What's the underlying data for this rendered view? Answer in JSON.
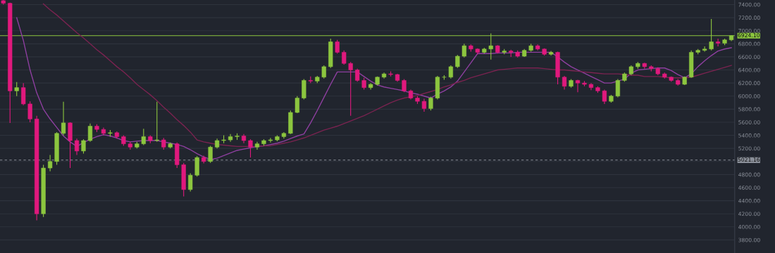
{
  "chart_data": {
    "type": "candlestick",
    "categories": [
      null,
      null,
      null,
      null,
      null,
      null,
      null,
      null,
      null,
      null,
      null,
      null,
      null,
      null,
      null,
      null,
      null,
      null,
      null,
      null,
      null,
      null,
      null,
      null,
      null,
      null,
      null,
      null,
      null,
      null,
      null,
      null,
      null,
      null,
      null,
      null,
      null,
      null,
      null,
      null,
      null,
      null,
      null,
      null,
      null,
      null,
      null,
      null,
      null,
      null,
      null,
      null,
      null,
      null,
      null,
      null,
      null,
      null,
      null,
      null,
      null,
      null,
      null,
      null,
      null,
      null,
      null,
      null,
      null,
      null,
      null,
      null,
      null,
      null,
      null,
      null,
      null,
      null,
      null,
      null,
      null,
      null,
      null,
      null,
      null,
      null,
      null,
      null,
      null,
      null,
      null,
      null,
      null,
      null,
      null,
      null,
      null,
      null,
      null,
      null,
      null,
      null,
      null,
      null,
      null,
      null,
      null,
      null,
      null,
      null
    ],
    "colors": [
      "#e0197d",
      "#e0197d",
      "#8cc63f",
      "#e0197d",
      "#e0197d",
      "#e0197d",
      "#8cc63f",
      "#8cc63f",
      "#8cc63f",
      "#8cc63f",
      "#e0197d",
      "#e0197d",
      "#8cc63f",
      "#8cc63f",
      "#e0197d",
      "#e0197d",
      "#8cc63f",
      "#e0197d",
      "#e0197d",
      "#e0197d",
      "#8cc63f",
      "#8cc63f",
      "#e0197d",
      "#8cc63f",
      "#e0197d",
      "#8cc63f",
      "#e0197d",
      "#e0197d",
      "#8cc63f",
      "#8cc63f",
      "#e0197d",
      "#8cc63f",
      "#8cc63f",
      "#8cc63f",
      "#8cc63f",
      "#8cc63f",
      "#e0197d",
      "#e0197d",
      "#8cc63f",
      "#8cc63f",
      "#8cc63f",
      "#8cc63f",
      "#8cc63f",
      "#8cc63f",
      "#8cc63f",
      "#8cc63f",
      "#e0197d",
      "#8cc63f",
      "#8cc63f",
      "#8cc63f",
      "#e0197d",
      "#e0197d",
      "#e0197d",
      "#e0197d",
      "#e0197d",
      "#8cc63f",
      "#8cc63f",
      "#8cc63f",
      "#e0197d",
      "#e0197d",
      "#e0197d",
      "#e0197d",
      "#e0197d",
      "#e0197d",
      "#8cc63f",
      "#8cc63f",
      "#8cc63f",
      "#8cc63f",
      "#8cc63f",
      "#8cc63f",
      "#e0197d",
      "#e0197d",
      "#8cc63f",
      "#8cc63f",
      "#e0197d",
      "#8cc63f",
      "#e0197d",
      "#e0197d",
      "#8cc63f",
      "#8cc63f",
      "#e0197d",
      "#e0197d",
      "#8cc63f",
      "#e0197d",
      "#e0197d",
      "#8cc63f",
      "#e0197d",
      "#e0197d",
      "#e0197d",
      "#e0197d",
      "#e0197d",
      "#8cc63f",
      "#8cc63f",
      "#8cc63f",
      "#8cc63f",
      "#8cc63f",
      "#e0197d",
      "#e0197d",
      "#e0197d",
      "#e0197d",
      "#e0197d",
      "#e0197d",
      "#8cc63f",
      "#8cc63f",
      "#8cc63f",
      "#8cc63f",
      "#8cc63f",
      "#e0197d",
      "#8cc63f",
      "#8cc63f"
    ],
    "ohlc": [
      [
        7460,
        7470,
        7400,
        7420
      ],
      [
        7420,
        7430,
        5590,
        6080
      ],
      [
        6080,
        6215,
        6000,
        6130
      ],
      [
        6130,
        6200,
        5860,
        5880
      ],
      [
        5880,
        5920,
        5600,
        5650
      ],
      [
        5650,
        5700,
        4100,
        4200
      ],
      [
        4200,
        4950,
        4150,
        4900
      ],
      [
        4900,
        5100,
        4850,
        5000
      ],
      [
        5000,
        5450,
        4950,
        5430
      ],
      [
        5430,
        5915,
        5400,
        5590
      ],
      [
        5590,
        5600,
        4900,
        5320
      ],
      [
        5320,
        5350,
        5100,
        5160
      ],
      [
        5160,
        5340,
        5120,
        5320
      ],
      [
        5320,
        5580,
        5300,
        5540
      ],
      [
        5540,
        5570,
        5450,
        5490
      ],
      [
        5490,
        5520,
        5400,
        5430
      ],
      [
        5430,
        5480,
        5380,
        5440
      ],
      [
        5440,
        5460,
        5350,
        5380
      ],
      [
        5380,
        5400,
        5240,
        5270
      ],
      [
        5270,
        5300,
        5180,
        5220
      ],
      [
        5220,
        5300,
        5200,
        5270
      ],
      [
        5270,
        5500,
        5250,
        5380
      ],
      [
        5380,
        5400,
        5280,
        5320
      ],
      [
        5320,
        5915,
        5300,
        5330
      ],
      [
        5330,
        5360,
        5180,
        5220
      ],
      [
        5220,
        5290,
        5200,
        5270
      ],
      [
        5270,
        5290,
        4900,
        4950
      ],
      [
        4950,
        4980,
        4465,
        4570
      ],
      [
        4570,
        4820,
        4540,
        4790
      ],
      [
        4790,
        5080,
        4770,
        5060
      ],
      [
        5060,
        5090,
        4970,
        5000
      ],
      [
        5000,
        5240,
        4980,
        5220
      ],
      [
        5220,
        5350,
        5200,
        5320
      ],
      [
        5320,
        5400,
        5280,
        5330
      ],
      [
        5330,
        5420,
        5300,
        5380
      ],
      [
        5380,
        5430,
        5330,
        5390
      ],
      [
        5390,
        5420,
        5280,
        5320
      ],
      [
        5320,
        5340,
        5060,
        5220
      ],
      [
        5220,
        5300,
        5180,
        5270
      ],
      [
        5270,
        5340,
        5240,
        5320
      ],
      [
        5320,
        5360,
        5290,
        5330
      ],
      [
        5330,
        5400,
        5310,
        5380
      ],
      [
        5380,
        5450,
        5350,
        5430
      ],
      [
        5430,
        5780,
        5420,
        5750
      ],
      [
        5750,
        6000,
        5740,
        5970
      ],
      [
        5970,
        6260,
        5950,
        6240
      ],
      [
        6240,
        6300,
        6200,
        6230
      ],
      [
        6230,
        6310,
        6200,
        6290
      ],
      [
        6290,
        6470,
        6270,
        6450
      ],
      [
        6450,
        6880,
        6430,
        6830
      ],
      [
        6830,
        6860,
        6650,
        6670
      ],
      [
        6670,
        6700,
        6480,
        6500
      ],
      [
        6500,
        6520,
        5700,
        6400
      ],
      [
        6400,
        6420,
        6220,
        6240
      ],
      [
        6240,
        6280,
        6100,
        6130
      ],
      [
        6130,
        6200,
        6100,
        6180
      ],
      [
        6180,
        6300,
        6160,
        6290
      ],
      [
        6290,
        6360,
        6270,
        6340
      ],
      [
        6340,
        6380,
        6300,
        6330
      ],
      [
        6330,
        6340,
        6220,
        6240
      ],
      [
        6240,
        6260,
        6060,
        6080
      ],
      [
        6080,
        6100,
        5950,
        5970
      ],
      [
        5970,
        6000,
        5880,
        5920
      ],
      [
        5920,
        5960,
        5760,
        5810
      ],
      [
        5810,
        5990,
        5780,
        5970
      ],
      [
        5970,
        6310,
        5950,
        6290
      ],
      [
        6290,
        6320,
        6250,
        6290
      ],
      [
        6290,
        6470,
        6270,
        6450
      ],
      [
        6450,
        6630,
        6430,
        6610
      ],
      [
        6610,
        6800,
        6590,
        6770
      ],
      [
        6770,
        6790,
        6680,
        6720
      ],
      [
        6720,
        6730,
        6640,
        6670
      ],
      [
        6670,
        6740,
        6650,
        6720
      ],
      [
        6720,
        6960,
        6560,
        6770
      ],
      [
        6770,
        6780,
        6650,
        6670
      ],
      [
        6670,
        6720,
        6640,
        6690
      ],
      [
        6690,
        6710,
        6600,
        6670
      ],
      [
        6670,
        6700,
        6590,
        6610
      ],
      [
        6610,
        6720,
        6600,
        6700
      ],
      [
        6700,
        6800,
        6680,
        6770
      ],
      [
        6770,
        6790,
        6700,
        6720
      ],
      [
        6720,
        6730,
        6620,
        6640
      ],
      [
        6640,
        6690,
        6620,
        6670
      ],
      [
        6670,
        6680,
        6180,
        6290
      ],
      [
        6290,
        6310,
        6100,
        6150
      ],
      [
        6150,
        6260,
        6130,
        6240
      ],
      [
        6240,
        6250,
        6060,
        6200
      ],
      [
        6200,
        6230,
        6150,
        6180
      ],
      [
        6180,
        6200,
        6090,
        6130
      ],
      [
        6130,
        6150,
        6050,
        6080
      ],
      [
        6080,
        6100,
        5880,
        5920
      ],
      [
        5920,
        6020,
        5900,
        6000
      ],
      [
        6000,
        6260,
        5980,
        6240
      ],
      [
        6240,
        6360,
        6220,
        6340
      ],
      [
        6340,
        6470,
        6320,
        6450
      ],
      [
        6450,
        6520,
        6420,
        6500
      ],
      [
        6500,
        6510,
        6420,
        6450
      ],
      [
        6450,
        6470,
        6380,
        6420
      ],
      [
        6420,
        6440,
        6320,
        6340
      ],
      [
        6340,
        6360,
        6270,
        6290
      ],
      [
        6290,
        6300,
        6220,
        6240
      ],
      [
        6240,
        6260,
        6160,
        6180
      ],
      [
        6180,
        6300,
        6170,
        6290
      ],
      [
        6290,
        6700,
        6280,
        6670
      ],
      [
        6670,
        6720,
        6640,
        6700
      ],
      [
        6700,
        6760,
        6680,
        6720
      ],
      [
        6720,
        7180,
        6700,
        6830
      ],
      [
        6830,
        6880,
        6760,
        6810
      ],
      [
        6810,
        6880,
        6780,
        6860
      ],
      [
        6860,
        6930,
        6840,
        6924.1
      ]
    ],
    "series": [
      {
        "type": "line",
        "color": "#8e3fa0",
        "values": [
          null,
          null,
          7200,
          6850,
          6400,
          6050,
          5800,
          5650,
          5520,
          5390,
          5300,
          5230,
          5290,
          5340,
          5380,
          5410,
          5390,
          5360,
          5320,
          5300,
          5310,
          5320,
          5320,
          5320,
          5300,
          5280,
          5260,
          5230,
          5180,
          5120,
          5070,
          5030,
          5050,
          5090,
          5130,
          5170,
          5190,
          5210,
          5230,
          5240,
          5260,
          5280,
          5310,
          5350,
          5390,
          5420,
          5590,
          5780,
          5980,
          6180,
          6370,
          6370,
          6370,
          6370,
          6300,
          6230,
          6170,
          6140,
          6120,
          6100,
          6080,
          6050,
          6030,
          6000,
          5970,
          6030,
          6080,
          6140,
          6230,
          6370,
          6510,
          6650,
          6650,
          6650,
          6660,
          6660,
          6660,
          6670,
          6670,
          6670,
          6670,
          6670,
          6670,
          6600,
          6520,
          6450,
          6400,
          6350,
          6300,
          6250,
          6200,
          6200,
          6230,
          6260,
          6350,
          6400,
          6410,
          6420,
          6430,
          6430,
          6390,
          6330,
          6280,
          6340,
          6450,
          6540,
          6620,
          6690,
          6720,
          6740
        ]
      },
      {
        "type": "line",
        "color": "#7a2350",
        "values": [
          null,
          null,
          null,
          null,
          null,
          null,
          7410,
          7320,
          7240,
          7150,
          7060,
          6970,
          6890,
          6800,
          6710,
          6630,
          6540,
          6450,
          6370,
          6280,
          6180,
          6100,
          6020,
          5930,
          5830,
          5740,
          5640,
          5550,
          5450,
          5330,
          5300,
          5280,
          5260,
          5250,
          5240,
          5230,
          5230,
          5230,
          5230,
          5240,
          5240,
          5260,
          5280,
          5300,
          5330,
          5360,
          5400,
          5440,
          5480,
          5510,
          5540,
          5580,
          5620,
          5660,
          5700,
          5750,
          5800,
          5850,
          5900,
          5940,
          5970,
          5990,
          6010,
          6040,
          6070,
          6100,
          6140,
          6170,
          6210,
          6240,
          6280,
          6310,
          6340,
          6370,
          6400,
          6410,
          6420,
          6430,
          6430,
          6430,
          6430,
          6420,
          6410,
          6400,
          6400,
          6390,
          6380,
          6370,
          6360,
          6350,
          6340,
          6340,
          6340,
          6330,
          6320,
          6320,
          6300,
          6300,
          6300,
          6290,
          6280,
          6280,
          6280,
          6290,
          6320,
          6350,
          6380,
          6410,
          6440,
          6470
        ]
      }
    ],
    "ref_lines": [
      {
        "axis": "y",
        "value": 6924.1,
        "label": "6924.10",
        "color": "#8cc63f",
        "line_style": "solid"
      },
      {
        "axis": "y",
        "value": 5021.16,
        "label": "5021.16",
        "color": "#8a8f99",
        "line_style": "dashed"
      }
    ],
    "ylim": [
      3600,
      7470
    ],
    "yticks": [
      {
        "value": 3800,
        "label": "3800.00"
      },
      {
        "value": 4000,
        "label": "4000.00"
      },
      {
        "value": 4200,
        "label": "4200.00"
      },
      {
        "value": 4400,
        "label": "4400.00"
      },
      {
        "value": 4600,
        "label": "4600.00"
      },
      {
        "value": 4800,
        "label": "4800.00"
      },
      {
        "value": 5000,
        "label": null
      },
      {
        "value": 5200,
        "label": "5200.00"
      },
      {
        "value": 5400,
        "label": "5400.00"
      },
      {
        "value": 5600,
        "label": "5600.00"
      },
      {
        "value": 5800,
        "label": "5800.00"
      },
      {
        "value": 6000,
        "label": "6000.00"
      },
      {
        "value": 6200,
        "label": "6200.00"
      },
      {
        "value": 6400,
        "label": "6400.00"
      },
      {
        "value": 6600,
        "label": "6600.00"
      },
      {
        "value": 6800,
        "label": "6800.00"
      },
      {
        "value": 7000,
        "label": "7000.00"
      },
      {
        "value": 7200,
        "label": "7200.00"
      },
      {
        "value": 7400,
        "label": "7400.00"
      }
    ],
    "grid": "y",
    "tick_labels": "y"
  }
}
